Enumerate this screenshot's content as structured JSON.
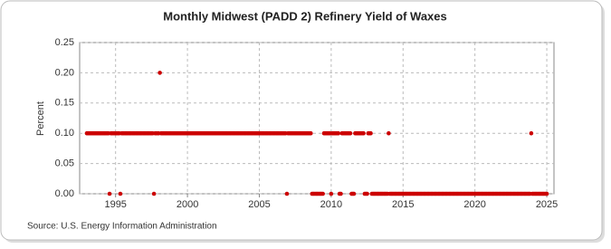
{
  "chart_data": {
    "type": "scatter",
    "title": "Monthly Midwest (PADD 2) Refinery Yield of Waxes",
    "y_label": "Percent",
    "source": "Source: U.S. Energy Information Administration",
    "color": "#cc0000",
    "grid": true,
    "xlim": [
      1992.5,
      2025.5
    ],
    "xticks": [
      1995,
      2000,
      2005,
      2010,
      2015,
      2020,
      2025
    ],
    "ylim": [
      0,
      0.25
    ],
    "yticks": [
      {
        "value": 0,
        "label": "0.00"
      },
      {
        "value": 0.05,
        "label": "0.05"
      },
      {
        "value": 0.1,
        "label": "0.10"
      },
      {
        "value": 0.15,
        "label": "0.15"
      },
      {
        "value": 0.2,
        "label": "0.20"
      },
      {
        "value": 0.25,
        "label": "0.25"
      }
    ],
    "x": [
      1993,
      1993.08,
      1993.17,
      1993.25,
      1993.33,
      1993.42,
      1993.5,
      1993.58,
      1993.67,
      1993.75,
      1993.83,
      1993.92,
      1994,
      1994.08,
      1994.17,
      1994.25,
      1994.33,
      1994.42,
      1994.5,
      1994.58,
      1994.67,
      1994.75,
      1994.83,
      1994.92,
      1995,
      1995.08,
      1995.17,
      1995.25,
      1995.33,
      1995.42,
      1995.5,
      1995.58,
      1995.67,
      1995.75,
      1995.83,
      1995.92,
      1996,
      1996.08,
      1996.17,
      1996.25,
      1996.33,
      1996.42,
      1996.5,
      1996.58,
      1996.67,
      1996.75,
      1996.83,
      1996.92,
      1997,
      1997.08,
      1997.17,
      1997.25,
      1997.33,
      1997.42,
      1997.5,
      1997.58,
      1997.67,
      1997.75,
      1997.83,
      1997.92,
      1998,
      1998.08,
      1998.17,
      1998.25,
      1998.33,
      1998.42,
      1998.5,
      1998.58,
      1998.67,
      1998.75,
      1998.83,
      1998.92,
      1999,
      1999.08,
      1999.17,
      1999.25,
      1999.33,
      1999.42,
      1999.5,
      1999.58,
      1999.67,
      1999.75,
      1999.83,
      1999.92,
      2000,
      2000.08,
      2000.17,
      2000.25,
      2000.33,
      2000.42,
      2000.5,
      2000.58,
      2000.67,
      2000.75,
      2000.83,
      2000.92,
      2001,
      2001.08,
      2001.17,
      2001.25,
      2001.33,
      2001.42,
      2001.5,
      2001.58,
      2001.67,
      2001.75,
      2001.83,
      2001.92,
      2002,
      2002.08,
      2002.17,
      2002.25,
      2002.33,
      2002.42,
      2002.5,
      2002.58,
      2002.67,
      2002.75,
      2002.83,
      2002.92,
      2003,
      2003.08,
      2003.17,
      2003.25,
      2003.33,
      2003.42,
      2003.5,
      2003.58,
      2003.67,
      2003.75,
      2003.83,
      2003.92,
      2004,
      2004.08,
      2004.17,
      2004.25,
      2004.33,
      2004.42,
      2004.5,
      2004.58,
      2004.67,
      2004.75,
      2004.83,
      2004.92,
      2005,
      2005.08,
      2005.17,
      2005.25,
      2005.33,
      2005.42,
      2005.5,
      2005.58,
      2005.67,
      2005.75,
      2005.83,
      2005.92,
      2006,
      2006.08,
      2006.17,
      2006.25,
      2006.33,
      2006.42,
      2006.5,
      2006.58,
      2006.67,
      2006.75,
      2006.83,
      2006.92,
      2007,
      2007.08,
      2007.17,
      2007.25,
      2007.33,
      2007.42,
      2007.5,
      2007.58,
      2007.67,
      2007.75,
      2007.83,
      2007.92,
      2008,
      2008.08,
      2008.17,
      2008.25,
      2008.33,
      2008.42,
      2008.5,
      2008.58,
      2008.67,
      2008.75,
      2008.83,
      2008.92,
      2009,
      2009.08,
      2009.17,
      2009.25,
      2009.33,
      2009.42,
      2009.5,
      2009.58,
      2009.67,
      2009.75,
      2009.83,
      2009.92,
      2010,
      2010.08,
      2010.17,
      2010.25,
      2010.33,
      2010.42,
      2010.5,
      2010.58,
      2010.67,
      2010.75,
      2010.83,
      2010.92,
      2011,
      2011.08,
      2011.17,
      2011.25,
      2011.33,
      2011.42,
      2011.5,
      2011.58,
      2011.67,
      2011.75,
      2011.83,
      2011.92,
      2012,
      2012.08,
      2012.17,
      2012.25,
      2012.33,
      2012.42,
      2012.5,
      2012.58,
      2012.67,
      2012.75,
      2012.83,
      2012.92,
      2013,
      2013.08,
      2013.17,
      2013.25,
      2013.33,
      2013.42,
      2013.5,
      2013.58,
      2013.67,
      2013.75,
      2013.83,
      2013.92,
      2014,
      2014.08,
      2014.17,
      2014.25,
      2014.33,
      2014.42,
      2014.5,
      2014.58,
      2014.67,
      2014.75,
      2014.83,
      2014.92,
      2015,
      2015.08,
      2015.17,
      2015.25,
      2015.33,
      2015.42,
      2015.5,
      2015.58,
      2015.67,
      2015.75,
      2015.83,
      2015.92,
      2016,
      2016.08,
      2016.17,
      2016.25,
      2016.33,
      2016.42,
      2016.5,
      2016.58,
      2016.67,
      2016.75,
      2016.83,
      2016.92,
      2017,
      2017.08,
      2017.17,
      2017.25,
      2017.33,
      2017.42,
      2017.5,
      2017.58,
      2017.67,
      2017.75,
      2017.83,
      2017.92,
      2018,
      2018.08,
      2018.17,
      2018.25,
      2018.33,
      2018.42,
      2018.5,
      2018.58,
      2018.67,
      2018.75,
      2018.83,
      2018.92,
      2019,
      2019.08,
      2019.17,
      2019.25,
      2019.33,
      2019.42,
      2019.5,
      2019.58,
      2019.67,
      2019.75,
      2019.83,
      2019.92,
      2020,
      2020.08,
      2020.17,
      2020.25,
      2020.33,
      2020.42,
      2020.5,
      2020.58,
      2020.67,
      2020.75,
      2020.83,
      2020.92,
      2021,
      2021.08,
      2021.17,
      2021.25,
      2021.33,
      2021.42,
      2021.5,
      2021.58,
      2021.67,
      2021.75,
      2021.83,
      2021.92,
      2022,
      2022.08,
      2022.17,
      2022.25,
      2022.33,
      2022.42,
      2022.5,
      2022.58,
      2022.67,
      2022.75,
      2022.83,
      2022.92,
      2023,
      2023.08,
      2023.17,
      2023.25,
      2023.33,
      2023.42,
      2023.5,
      2023.58,
      2023.67,
      2023.75,
      2023.83,
      2023.92,
      2024,
      2024.08,
      2024.17,
      2024.25,
      2024.33,
      2024.42,
      2024.5,
      2024.58,
      2024.67,
      2024.75,
      2024.83,
      2024.92,
      2025
    ],
    "values": [
      0.1,
      0.1,
      0.1,
      0.1,
      0.1,
      0.1,
      0.1,
      0.1,
      0.1,
      0.1,
      0.1,
      0.1,
      0.1,
      0.1,
      0.1,
      0.1,
      0.1,
      0.1,
      0.1,
      0,
      0.1,
      0.1,
      0.1,
      0.1,
      0.1,
      0.1,
      0.1,
      0.1,
      0,
      0.1,
      0.1,
      0.1,
      0.1,
      0.1,
      0.1,
      0.1,
      0.1,
      0.1,
      0.1,
      0.1,
      0.1,
      0.1,
      0.1,
      0.1,
      0.1,
      0.1,
      0.1,
      0.1,
      0.1,
      0.1,
      0.1,
      0.1,
      0.1,
      0.1,
      0.1,
      0.1,
      0,
      0.1,
      0.1,
      0.1,
      0.1,
      0.2,
      0.1,
      0.1,
      0.1,
      0.1,
      0.1,
      0.1,
      0.1,
      0.1,
      0.1,
      0.1,
      0.1,
      0.1,
      0.1,
      0.1,
      0.1,
      0.1,
      0.1,
      0.1,
      0.1,
      0.1,
      0.1,
      0.1,
      0.1,
      0.1,
      0.1,
      0.1,
      0.1,
      0.1,
      0.1,
      0.1,
      0.1,
      0.1,
      0.1,
      0.1,
      0.1,
      0.1,
      0.1,
      0.1,
      0.1,
      0.1,
      0.1,
      0.1,
      0.1,
      0.1,
      0.1,
      0.1,
      0.1,
      0.1,
      0.1,
      0.1,
      0.1,
      0.1,
      0.1,
      0.1,
      0.1,
      0.1,
      0.1,
      0.1,
      0.1,
      0.1,
      0.1,
      0.1,
      0.1,
      0.1,
      0.1,
      0.1,
      0.1,
      0.1,
      0.1,
      0.1,
      0.1,
      0.1,
      0.1,
      0.1,
      0.1,
      0.1,
      0.1,
      0.1,
      0.1,
      0.1,
      0.1,
      0.1,
      0.1,
      0.1,
      0.1,
      0.1,
      0.1,
      0.1,
      0.1,
      0.1,
      0.1,
      0.1,
      0.1,
      0.1,
      0.1,
      0.1,
      0.1,
      0.1,
      0.1,
      0.1,
      0.1,
      0.1,
      0.1,
      0.1,
      0.1,
      0,
      0.1,
      0.1,
      0.1,
      0.1,
      0.1,
      0.1,
      0.1,
      0.1,
      0.1,
      0.1,
      0.1,
      0.1,
      0.1,
      0.1,
      0.1,
      0.1,
      0.1,
      0.1,
      0.1,
      0.1,
      0,
      0,
      0,
      0,
      0,
      0,
      0,
      0,
      0,
      0,
      0.1,
      0.1,
      0.1,
      0.1,
      0.1,
      0.1,
      0,
      0.1,
      0.1,
      0.1,
      0.1,
      0.1,
      0.1,
      0,
      0,
      0.1,
      0.1,
      0.1,
      0.1,
      0.1,
      0.1,
      0.1,
      0.1,
      0,
      0,
      0,
      0.1,
      0.1,
      0.1,
      0.1,
      0.1,
      0.1,
      0.1,
      0.1,
      0,
      0,
      0,
      0.1,
      0.1,
      0.1,
      0,
      0,
      0,
      0,
      0,
      0,
      0,
      0,
      0,
      0,
      0,
      0,
      0,
      0,
      0.1,
      0,
      0,
      0,
      0,
      0,
      0,
      0,
      0,
      0,
      0,
      0,
      0,
      0,
      0,
      0,
      0,
      0,
      0,
      0,
      0,
      0,
      0,
      0,
      0,
      0,
      0,
      0,
      0,
      0,
      0,
      0,
      0,
      0,
      0,
      0,
      0,
      0,
      0,
      0,
      0,
      0,
      0,
      0,
      0,
      0,
      0,
      0,
      0,
      0,
      0,
      0,
      0,
      0,
      0,
      0,
      0,
      0,
      0,
      0,
      0,
      0,
      0,
      0,
      0,
      0,
      0,
      0,
      0,
      0,
      0,
      0,
      0,
      0,
      0,
      0,
      0,
      0,
      0,
      0,
      0,
      0,
      0,
      0,
      0,
      0,
      0,
      0,
      0,
      0,
      0,
      0,
      0,
      0,
      0,
      0,
      0,
      0,
      0,
      0,
      0,
      0,
      0,
      0,
      0,
      0,
      0,
      0,
      0,
      0,
      0,
      0,
      0,
      0,
      0,
      0,
      0,
      0,
      0,
      0.1,
      0,
      0,
      0,
      0,
      0,
      0,
      0,
      0,
      0,
      0,
      0,
      0,
      0
    ]
  }
}
